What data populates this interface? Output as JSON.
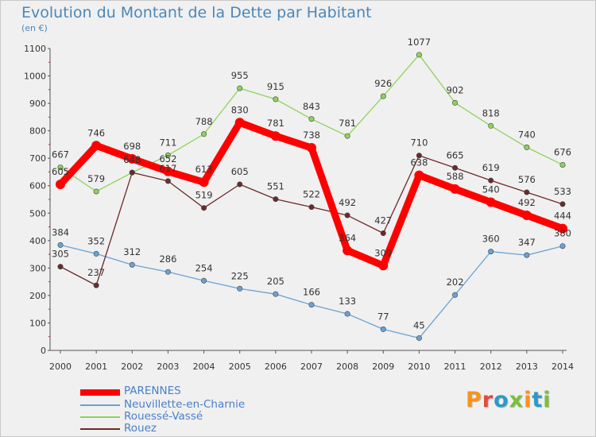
{
  "title": "Evolution du Montant de la Dette par Habitant",
  "unit": "(en €)",
  "logo": {
    "text": "Proxiti",
    "colors": [
      "#f7941d",
      "#e44b3c",
      "#2b9ac9",
      "#7cbf3a",
      "#f7941d",
      "#2b9ac9",
      "#7cbf3a"
    ]
  },
  "chart_data": {
    "type": "line",
    "title": "Evolution du Montant de la Dette par Habitant",
    "ylabel": "(en €)",
    "xlabel": "",
    "ylim": [
      0,
      1100
    ],
    "yticks": [
      0,
      100,
      200,
      300,
      400,
      500,
      600,
      700,
      800,
      900,
      1000,
      1100
    ],
    "grid": false,
    "legend_position": "bottom-left",
    "x": [
      "2000",
      "2001",
      "2002",
      "2003",
      "2004",
      "2005",
      "2006",
      "2007",
      "2008",
      "2009",
      "2010",
      "2011",
      "2012",
      "2013",
      "2014"
    ],
    "series": [
      {
        "name": "PARENNES",
        "color": "#ff0000",
        "values": [
          605,
          746,
          698,
          652,
          613,
          830,
          781,
          738,
          364,
          309,
          638,
          588,
          540,
          492,
          444
        ]
      },
      {
        "name": "Neuvillette-en-Charnie",
        "color": "#6aa2d2",
        "values": [
          384,
          352,
          312,
          286,
          254,
          225,
          205,
          166,
          133,
          77,
          45,
          202,
          360,
          347,
          380
        ]
      },
      {
        "name": "Rouessé-Vassé",
        "color": "#8ed35c",
        "values": [
          667,
          579,
          648,
          711,
          788,
          955,
          915,
          843,
          781,
          926,
          1077,
          902,
          818,
          740,
          676
        ]
      },
      {
        "name": "Rouez",
        "color": "#6b2a2a",
        "values": [
          305,
          237,
          648,
          617,
          519,
          605,
          551,
          522,
          492,
          427,
          710,
          665,
          619,
          576,
          533
        ]
      }
    ]
  }
}
